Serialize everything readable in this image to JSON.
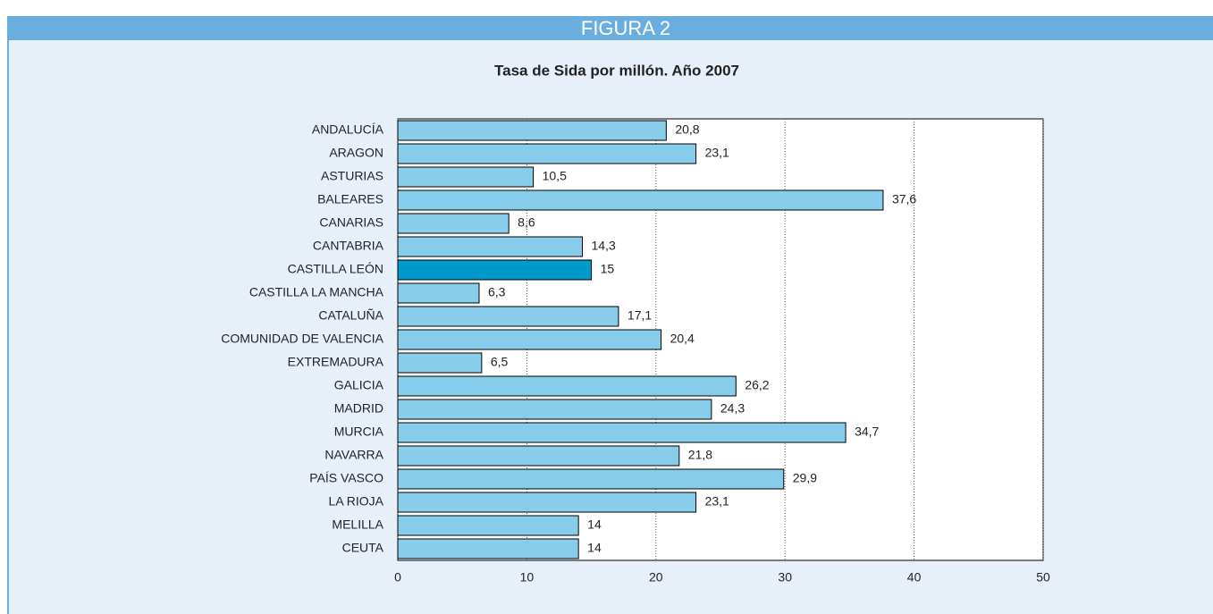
{
  "header": "FIGURA 2",
  "chart_data": {
    "type": "hbar",
    "title": "Tasa de Sida por millón. Año 2007",
    "categories": [
      "ANDALUCÍA",
      "ARAGON",
      "ASTURIAS",
      "BALEARES",
      "CANARIAS",
      "CANTABRIA",
      "CASTILLA LEÓN",
      "CASTILLA LA MANCHA",
      "CATALUÑA",
      "COMUNIDAD DE VALENCIA",
      "EXTREMADURA",
      "GALICIA",
      "MADRID",
      "MURCIA",
      "NAVARRA",
      "PAÍS VASCO",
      "LA RIOJA",
      "MELILLA",
      "CEUTA"
    ],
    "values": [
      20.8,
      23.1,
      10.5,
      37.6,
      8.6,
      14.3,
      15,
      6.3,
      17.1,
      20.4,
      6.5,
      26.2,
      24.3,
      34.7,
      21.8,
      29.9,
      23.1,
      14,
      14
    ],
    "value_labels": [
      "20,8",
      "23,1",
      "10,5",
      "37,6",
      "8,6",
      "14,3",
      "15",
      "6,3",
      "17,1",
      "20,4",
      "6,5",
      "26,2",
      "24,3",
      "34,7",
      "21,8",
      "29,9",
      "23,1",
      "14",
      "14"
    ],
    "colors": [
      "#87cde9",
      "#87cde9",
      "#87cde9",
      "#87cde9",
      "#87cde9",
      "#87cde9",
      "#0099cc",
      "#87cde9",
      "#87cde9",
      "#87cde9",
      "#87cde9",
      "#87cde9",
      "#87cde9",
      "#87cde9",
      "#87cde9",
      "#87cde9",
      "#87cde9",
      "#87cde9",
      "#87cde9"
    ],
    "xlim": [
      0,
      50
    ],
    "xticks": [
      0,
      10,
      20,
      30,
      40,
      50
    ],
    "grid": true
  }
}
